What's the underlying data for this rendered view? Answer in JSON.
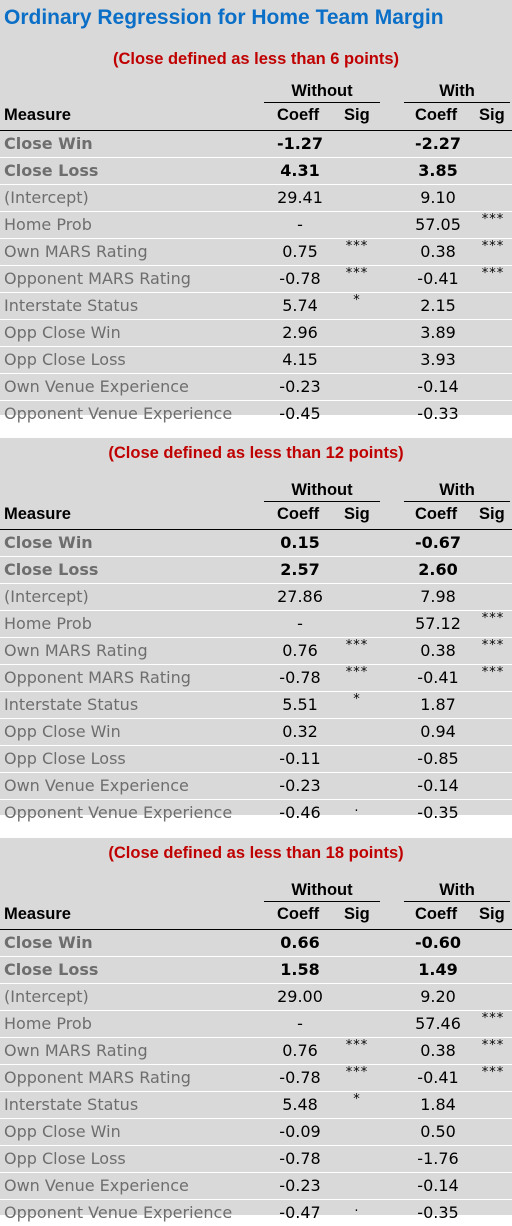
{
  "title": "Ordinary Regression for Home Team Margin",
  "headers": {
    "without": "Without",
    "with": "With",
    "measure": "Measure",
    "coeff": "Coeff",
    "sig": "Sig"
  },
  "panels": [
    {
      "subtitle": "(Close defined as less than 6 points)",
      "rows": [
        {
          "measure": "Close Win",
          "bold": true,
          "without_coeff": "-1.27",
          "without_sig": "",
          "with_coeff": "-2.27",
          "with_sig": ""
        },
        {
          "measure": "Close Loss",
          "bold": true,
          "without_coeff": "4.31",
          "without_sig": "",
          "with_coeff": "3.85",
          "with_sig": ""
        },
        {
          "measure": "(Intercept)",
          "bold": false,
          "without_coeff": "29.41",
          "without_sig": "",
          "with_coeff": "9.10",
          "with_sig": ""
        },
        {
          "measure": "Home Prob",
          "bold": false,
          "without_coeff": "-",
          "without_sig": "",
          "with_coeff": "57.05",
          "with_sig": "***"
        },
        {
          "measure": "Own MARS Rating",
          "bold": false,
          "without_coeff": "0.75",
          "without_sig": "***",
          "with_coeff": "0.38",
          "with_sig": "***"
        },
        {
          "measure": "Opponent MARS Rating",
          "bold": false,
          "without_coeff": "-0.78",
          "without_sig": "***",
          "with_coeff": "-0.41",
          "with_sig": "***"
        },
        {
          "measure": "Interstate Status",
          "bold": false,
          "without_coeff": "5.74",
          "without_sig": "*",
          "with_coeff": "2.15",
          "with_sig": ""
        },
        {
          "measure": "Opp Close Win",
          "bold": false,
          "without_coeff": "2.96",
          "without_sig": "",
          "with_coeff": "3.89",
          "with_sig": ""
        },
        {
          "measure": "Opp Close Loss",
          "bold": false,
          "without_coeff": "4.15",
          "without_sig": "",
          "with_coeff": "3.93",
          "with_sig": ""
        },
        {
          "measure": "Own Venue Experience",
          "bold": false,
          "without_coeff": "-0.23",
          "without_sig": "",
          "with_coeff": "-0.14",
          "with_sig": ""
        },
        {
          "measure": "Opponent Venue Experience",
          "bold": false,
          "without_coeff": "-0.45",
          "without_sig": "",
          "with_coeff": "-0.33",
          "with_sig": ""
        }
      ]
    },
    {
      "subtitle": "(Close defined as less than 12 points)",
      "rows": [
        {
          "measure": "Close Win",
          "bold": true,
          "without_coeff": "0.15",
          "without_sig": "",
          "with_coeff": "-0.67",
          "with_sig": ""
        },
        {
          "measure": "Close Loss",
          "bold": true,
          "without_coeff": "2.57",
          "without_sig": "",
          "with_coeff": "2.60",
          "with_sig": ""
        },
        {
          "measure": "(Intercept)",
          "bold": false,
          "without_coeff": "27.86",
          "without_sig": "",
          "with_coeff": "7.98",
          "with_sig": ""
        },
        {
          "measure": "Home Prob",
          "bold": false,
          "without_coeff": "-",
          "without_sig": "",
          "with_coeff": "57.12",
          "with_sig": "***"
        },
        {
          "measure": "Own MARS Rating",
          "bold": false,
          "without_coeff": "0.76",
          "without_sig": "***",
          "with_coeff": "0.38",
          "with_sig": "***"
        },
        {
          "measure": "Opponent MARS Rating",
          "bold": false,
          "without_coeff": "-0.78",
          "without_sig": "***",
          "with_coeff": "-0.41",
          "with_sig": "***"
        },
        {
          "measure": "Interstate Status",
          "bold": false,
          "without_coeff": "5.51",
          "without_sig": "*",
          "with_coeff": "1.87",
          "with_sig": ""
        },
        {
          "measure": "Opp Close Win",
          "bold": false,
          "without_coeff": "0.32",
          "without_sig": "",
          "with_coeff": "0.94",
          "with_sig": ""
        },
        {
          "measure": "Opp Close Loss",
          "bold": false,
          "without_coeff": "-0.11",
          "without_sig": "",
          "with_coeff": "-0.85",
          "with_sig": ""
        },
        {
          "measure": "Own Venue Experience",
          "bold": false,
          "without_coeff": "-0.23",
          "without_sig": "",
          "with_coeff": "-0.14",
          "with_sig": ""
        },
        {
          "measure": "Opponent Venue Experience",
          "bold": false,
          "without_coeff": "-0.46",
          "without_sig": ".",
          "with_coeff": "-0.35",
          "with_sig": ""
        }
      ]
    },
    {
      "subtitle": "(Close defined as less than 18 points)",
      "rows": [
        {
          "measure": "Close Win",
          "bold": true,
          "without_coeff": "0.66",
          "without_sig": "",
          "with_coeff": "-0.60",
          "with_sig": ""
        },
        {
          "measure": "Close Loss",
          "bold": true,
          "without_coeff": "1.58",
          "without_sig": "",
          "with_coeff": "1.49",
          "with_sig": ""
        },
        {
          "measure": "(Intercept)",
          "bold": false,
          "without_coeff": "29.00",
          "without_sig": "",
          "with_coeff": "9.20",
          "with_sig": ""
        },
        {
          "measure": "Home Prob",
          "bold": false,
          "without_coeff": "-",
          "without_sig": "",
          "with_coeff": "57.46",
          "with_sig": "***"
        },
        {
          "measure": "Own MARS Rating",
          "bold": false,
          "without_coeff": "0.76",
          "without_sig": "***",
          "with_coeff": "0.38",
          "with_sig": "***"
        },
        {
          "measure": "Opponent MARS Rating",
          "bold": false,
          "without_coeff": "-0.78",
          "without_sig": "***",
          "with_coeff": "-0.41",
          "with_sig": "***"
        },
        {
          "measure": "Interstate Status",
          "bold": false,
          "without_coeff": "5.48",
          "without_sig": "*",
          "with_coeff": "1.84",
          "with_sig": ""
        },
        {
          "measure": "Opp Close Win",
          "bold": false,
          "without_coeff": "-0.09",
          "without_sig": "",
          "with_coeff": "0.50",
          "with_sig": ""
        },
        {
          "measure": "Opp Close Loss",
          "bold": false,
          "without_coeff": "-0.78",
          "without_sig": "",
          "with_coeff": "-1.76",
          "with_sig": ""
        },
        {
          "measure": "Own Venue Experience",
          "bold": false,
          "without_coeff": "-0.23",
          "without_sig": "",
          "with_coeff": "-0.14",
          "with_sig": ""
        },
        {
          "measure": "Opponent Venue Experience",
          "bold": false,
          "without_coeff": "-0.47",
          "without_sig": ".",
          "with_coeff": "-0.35",
          "with_sig": ""
        }
      ]
    }
  ]
}
